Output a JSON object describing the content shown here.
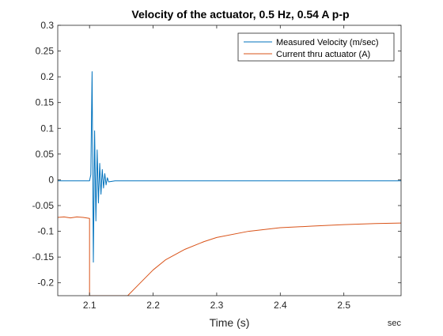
{
  "chart_data": {
    "type": "line",
    "title": "Velocity of the actuator, 0.5 Hz, 0.54 A p-p",
    "xlabel": "Time (s)",
    "x_unit": "sec",
    "ylabel": "",
    "xlim": [
      2.05,
      2.59
    ],
    "ylim": [
      -0.225,
      0.3
    ],
    "x_ticks": [
      2.1,
      2.2,
      2.3,
      2.4,
      2.5
    ],
    "x_tick_labels": [
      "2.1",
      "2.2",
      "2.3",
      "2.4",
      "2.5"
    ],
    "y_ticks": [
      -0.2,
      -0.15,
      -0.1,
      -0.05,
      0,
      0.05,
      0.1,
      0.15,
      0.2,
      0.25,
      0.3
    ],
    "y_tick_labels": [
      "-0.2",
      "-0.15",
      "-0.1",
      "-0.05",
      "0",
      "0.05",
      "0.1",
      "0.15",
      "0.2",
      "0.25",
      "0.3"
    ],
    "grid": false,
    "legend_position": "top-right",
    "series": [
      {
        "name": "Measured Velocity (m/sec)",
        "color": "#0072BD",
        "x": [
          2.05,
          2.1,
          2.102,
          2.104,
          2.106,
          2.108,
          2.11,
          2.112,
          2.114,
          2.116,
          2.118,
          2.12,
          2.122,
          2.124,
          2.126,
          2.128,
          2.13,
          2.135,
          2.14,
          2.2,
          2.3,
          2.4,
          2.5,
          2.59
        ],
        "y": [
          -0.002,
          -0.002,
          0.01,
          0.21,
          -0.16,
          0.095,
          -0.08,
          0.058,
          -0.045,
          0.032,
          -0.028,
          0.02,
          -0.016,
          0.012,
          -0.01,
          0.004,
          -0.004,
          -0.003,
          -0.002,
          -0.002,
          -0.002,
          -0.002,
          -0.002,
          -0.002
        ]
      },
      {
        "name": "Current thru actuator (A)",
        "color": "#D95319",
        "x": [
          2.05,
          2.06,
          2.07,
          2.08,
          2.09,
          2.1,
          2.1,
          2.16,
          2.18,
          2.2,
          2.22,
          2.25,
          2.28,
          2.3,
          2.35,
          2.4,
          2.45,
          2.5,
          2.55,
          2.59
        ],
        "y": [
          -0.073,
          -0.072,
          -0.074,
          -0.072,
          -0.073,
          -0.075,
          -0.225,
          -0.225,
          -0.2,
          -0.175,
          -0.155,
          -0.135,
          -0.12,
          -0.112,
          -0.1,
          -0.093,
          -0.09,
          -0.087,
          -0.085,
          -0.084
        ]
      }
    ]
  }
}
